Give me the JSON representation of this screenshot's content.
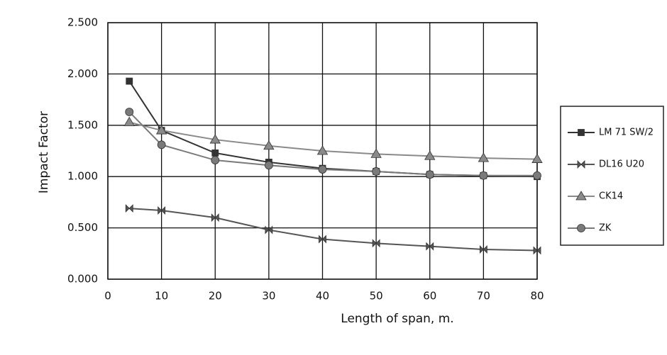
{
  "chart_data": {
    "type": "line",
    "x_label": "Length of span, m.",
    "y_label": "Impact Factor",
    "x": [
      4,
      10,
      20,
      30,
      40,
      50,
      60,
      70,
      80
    ],
    "series": [
      {
        "name": "LM 71 SW/2",
        "color": "#333333",
        "marker": "square",
        "values": [
          1.93,
          1.45,
          1.23,
          1.14,
          1.08,
          1.05,
          1.02,
          1.01,
          1.0
        ]
      },
      {
        "name": "DL16 U20",
        "color": "#555555",
        "marker": "bowtie",
        "values": [
          0.69,
          0.67,
          0.6,
          0.48,
          0.39,
          0.35,
          0.32,
          0.29,
          0.28
        ]
      },
      {
        "name": "CK14",
        "color": "#8a8a8a",
        "marker": "triangle",
        "values": [
          1.53,
          1.45,
          1.36,
          1.3,
          1.25,
          1.22,
          1.2,
          1.18,
          1.17
        ]
      },
      {
        "name": "ZK",
        "color": "#7a7a7a",
        "marker": "circle",
        "values": [
          1.63,
          1.31,
          1.16,
          1.11,
          1.07,
          1.05,
          1.02,
          1.01,
          1.01
        ]
      }
    ],
    "xlim": [
      0,
      80
    ],
    "xticks": [
      0,
      10,
      20,
      30,
      40,
      50,
      60,
      70,
      80
    ],
    "ylim": [
      0,
      2.5
    ],
    "yticks": [
      {
        "value": 0,
        "label": "0.000"
      },
      {
        "value": 0.5,
        "label": "0.500"
      },
      {
        "value": 1,
        "label": "1.000"
      },
      {
        "value": 1.5,
        "label": "1.500"
      },
      {
        "value": 2,
        "label": "2.000"
      },
      {
        "value": 2.5,
        "label": "2.500"
      }
    ],
    "grid": true,
    "legend": "right"
  }
}
